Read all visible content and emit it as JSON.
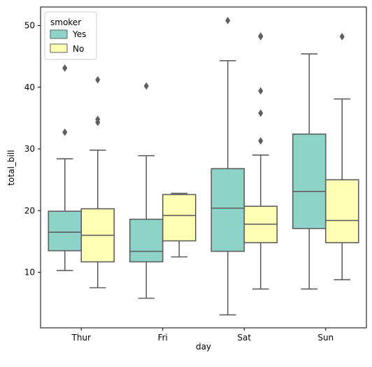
{
  "chart_data": {
    "type": "box",
    "xlabel": "day",
    "ylabel": "total_bill",
    "categories": [
      "Thur",
      "Fri",
      "Sat",
      "Sun"
    ],
    "ylim": [
      1,
      53
    ],
    "yticks": [
      10,
      20,
      30,
      40,
      50
    ],
    "grid": false,
    "legend": {
      "title": "smoker",
      "position": "top-left"
    },
    "series": [
      {
        "name": "Yes",
        "color": "#8dd3c7",
        "boxes": [
          {
            "category": "Thur",
            "whisker_low": 10.3,
            "q1": 13.5,
            "median": 16.5,
            "q3": 19.9,
            "whisker_high": 28.4,
            "outliers": [
              32.7,
              43.1
            ]
          },
          {
            "category": "Fri",
            "whisker_low": 5.8,
            "q1": 11.7,
            "median": 13.4,
            "q3": 18.6,
            "whisker_high": 28.9,
            "outliers": [
              40.2
            ]
          },
          {
            "category": "Sat",
            "whisker_low": 3.1,
            "q1": 13.4,
            "median": 20.4,
            "q3": 26.8,
            "whisker_high": 44.3,
            "outliers": [
              50.8
            ]
          },
          {
            "category": "Sun",
            "whisker_low": 7.3,
            "q1": 17.1,
            "median": 23.1,
            "q3": 32.4,
            "whisker_high": 45.4,
            "outliers": []
          }
        ]
      },
      {
        "name": "No",
        "color": "#ffffb3",
        "boxes": [
          {
            "category": "Thur",
            "whisker_low": 7.5,
            "q1": 11.7,
            "median": 16.0,
            "q3": 20.3,
            "whisker_high": 29.8,
            "outliers": [
              34.3,
              34.8,
              41.2
            ]
          },
          {
            "category": "Fri",
            "whisker_low": 12.5,
            "q1": 15.1,
            "median": 19.2,
            "q3": 22.6,
            "whisker_high": 22.8,
            "outliers": []
          },
          {
            "category": "Sat",
            "whisker_low": 7.3,
            "q1": 14.8,
            "median": 17.8,
            "q3": 20.7,
            "whisker_high": 29.0,
            "outliers": [
              31.3,
              35.8,
              39.4,
              48.2,
              48.3
            ]
          },
          {
            "category": "Sun",
            "whisker_low": 8.8,
            "q1": 14.8,
            "median": 18.4,
            "q3": 25.0,
            "whisker_high": 38.1,
            "outliers": [
              48.2
            ]
          }
        ]
      }
    ]
  }
}
